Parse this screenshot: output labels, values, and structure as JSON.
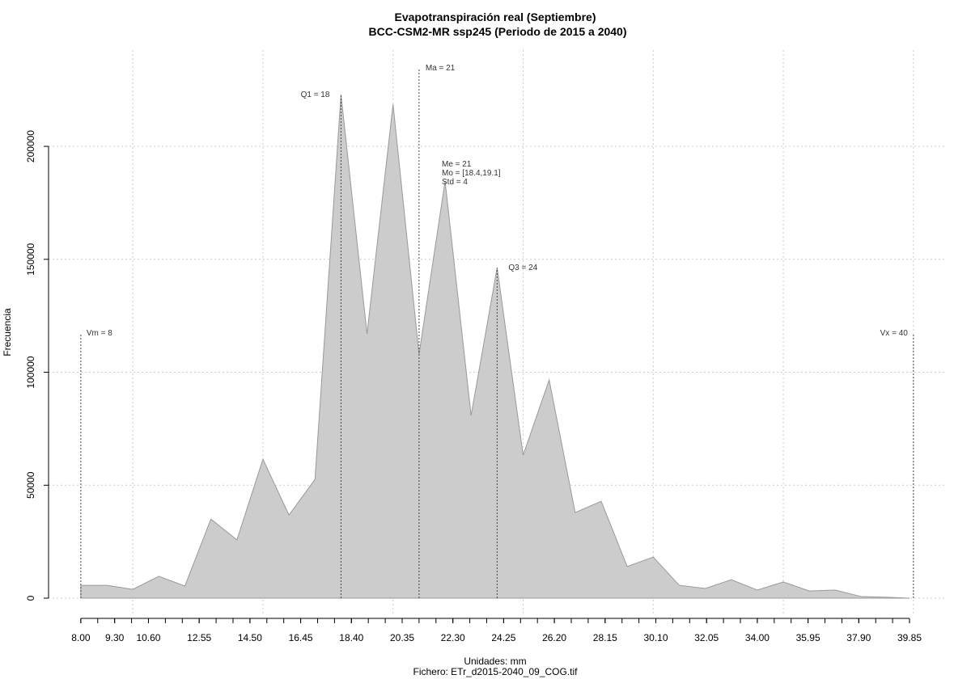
{
  "chart_data": {
    "type": "area",
    "title": "Evapotranspiración real (Septiembre)",
    "subtitle": "BCC-CSM2-MR ssp245 (Periodo de 2015 a 2040)",
    "x_label": "Unidades: mm",
    "caption": "Fichero: ETr_d2015-2040_09_COG.tif",
    "y_label": "Frecuencia",
    "x": [
      8,
      9,
      10,
      11,
      12,
      13,
      14,
      15,
      16,
      17,
      18,
      19,
      20,
      21,
      22,
      23,
      24,
      25,
      26,
      27,
      28,
      29,
      30,
      31,
      32,
      33,
      34,
      35,
      36,
      37,
      38,
      39,
      39.85
    ],
    "values": [
      5700,
      5700,
      3900,
      9700,
      5400,
      35000,
      25800,
      61500,
      36800,
      52600,
      222900,
      117000,
      218600,
      108000,
      184600,
      80900,
      146300,
      63300,
      96600,
      37900,
      42900,
      14000,
      18200,
      5700,
      4300,
      8200,
      3600,
      7200,
      3200,
      3600,
      700,
      400,
      0
    ],
    "color": "#cccccc",
    "xlim": [
      6.76,
      41.28
    ],
    "ylim": [
      -7150,
      242600
    ],
    "xticks": [
      {
        "value": 8,
        "label": "8.00"
      },
      {
        "value": 9.3,
        "label": "9.30"
      },
      {
        "value": 10.6,
        "label": "10.60"
      },
      {
        "value": 12.55,
        "label": "12.55"
      },
      {
        "value": 14.5,
        "label": "14.50"
      },
      {
        "value": 16.45,
        "label": "16.45"
      },
      {
        "value": 18.4,
        "label": "18.40"
      },
      {
        "value": 20.35,
        "label": "20.35"
      },
      {
        "value": 22.3,
        "label": "22.30"
      },
      {
        "value": 24.25,
        "label": "24.25"
      },
      {
        "value": 26.2,
        "label": "26.20"
      },
      {
        "value": 28.15,
        "label": "28.15"
      },
      {
        "value": 30.1,
        "label": "30.10"
      },
      {
        "value": 32.05,
        "label": "32.05"
      },
      {
        "value": 34,
        "label": "34.00"
      },
      {
        "value": 35.95,
        "label": "35.95"
      },
      {
        "value": 37.9,
        "label": "37.90"
      },
      {
        "value": 39.85,
        "label": "39.85"
      }
    ],
    "yticks": [
      0,
      50000,
      100000,
      150000,
      200000
    ],
    "xgrid": [
      10,
      15,
      20,
      25,
      30,
      35,
      40
    ],
    "grid": true,
    "vlines": [
      {
        "label": "Vm = 8",
        "x": 8,
        "height": 117000
      },
      {
        "label": "Q1 = 18",
        "x": 18,
        "height": 222900
      },
      {
        "label": "Ma = 21",
        "x": 21,
        "height": 234000
      },
      {
        "label": "Q3 = 24",
        "x": 24,
        "height": 146300
      },
      {
        "label": "Vx = 40",
        "x": 40,
        "height": 117000
      }
    ],
    "stats": [
      "Me = 21",
      "Mo = [18.4,19.1]",
      "Std = 4"
    ]
  }
}
